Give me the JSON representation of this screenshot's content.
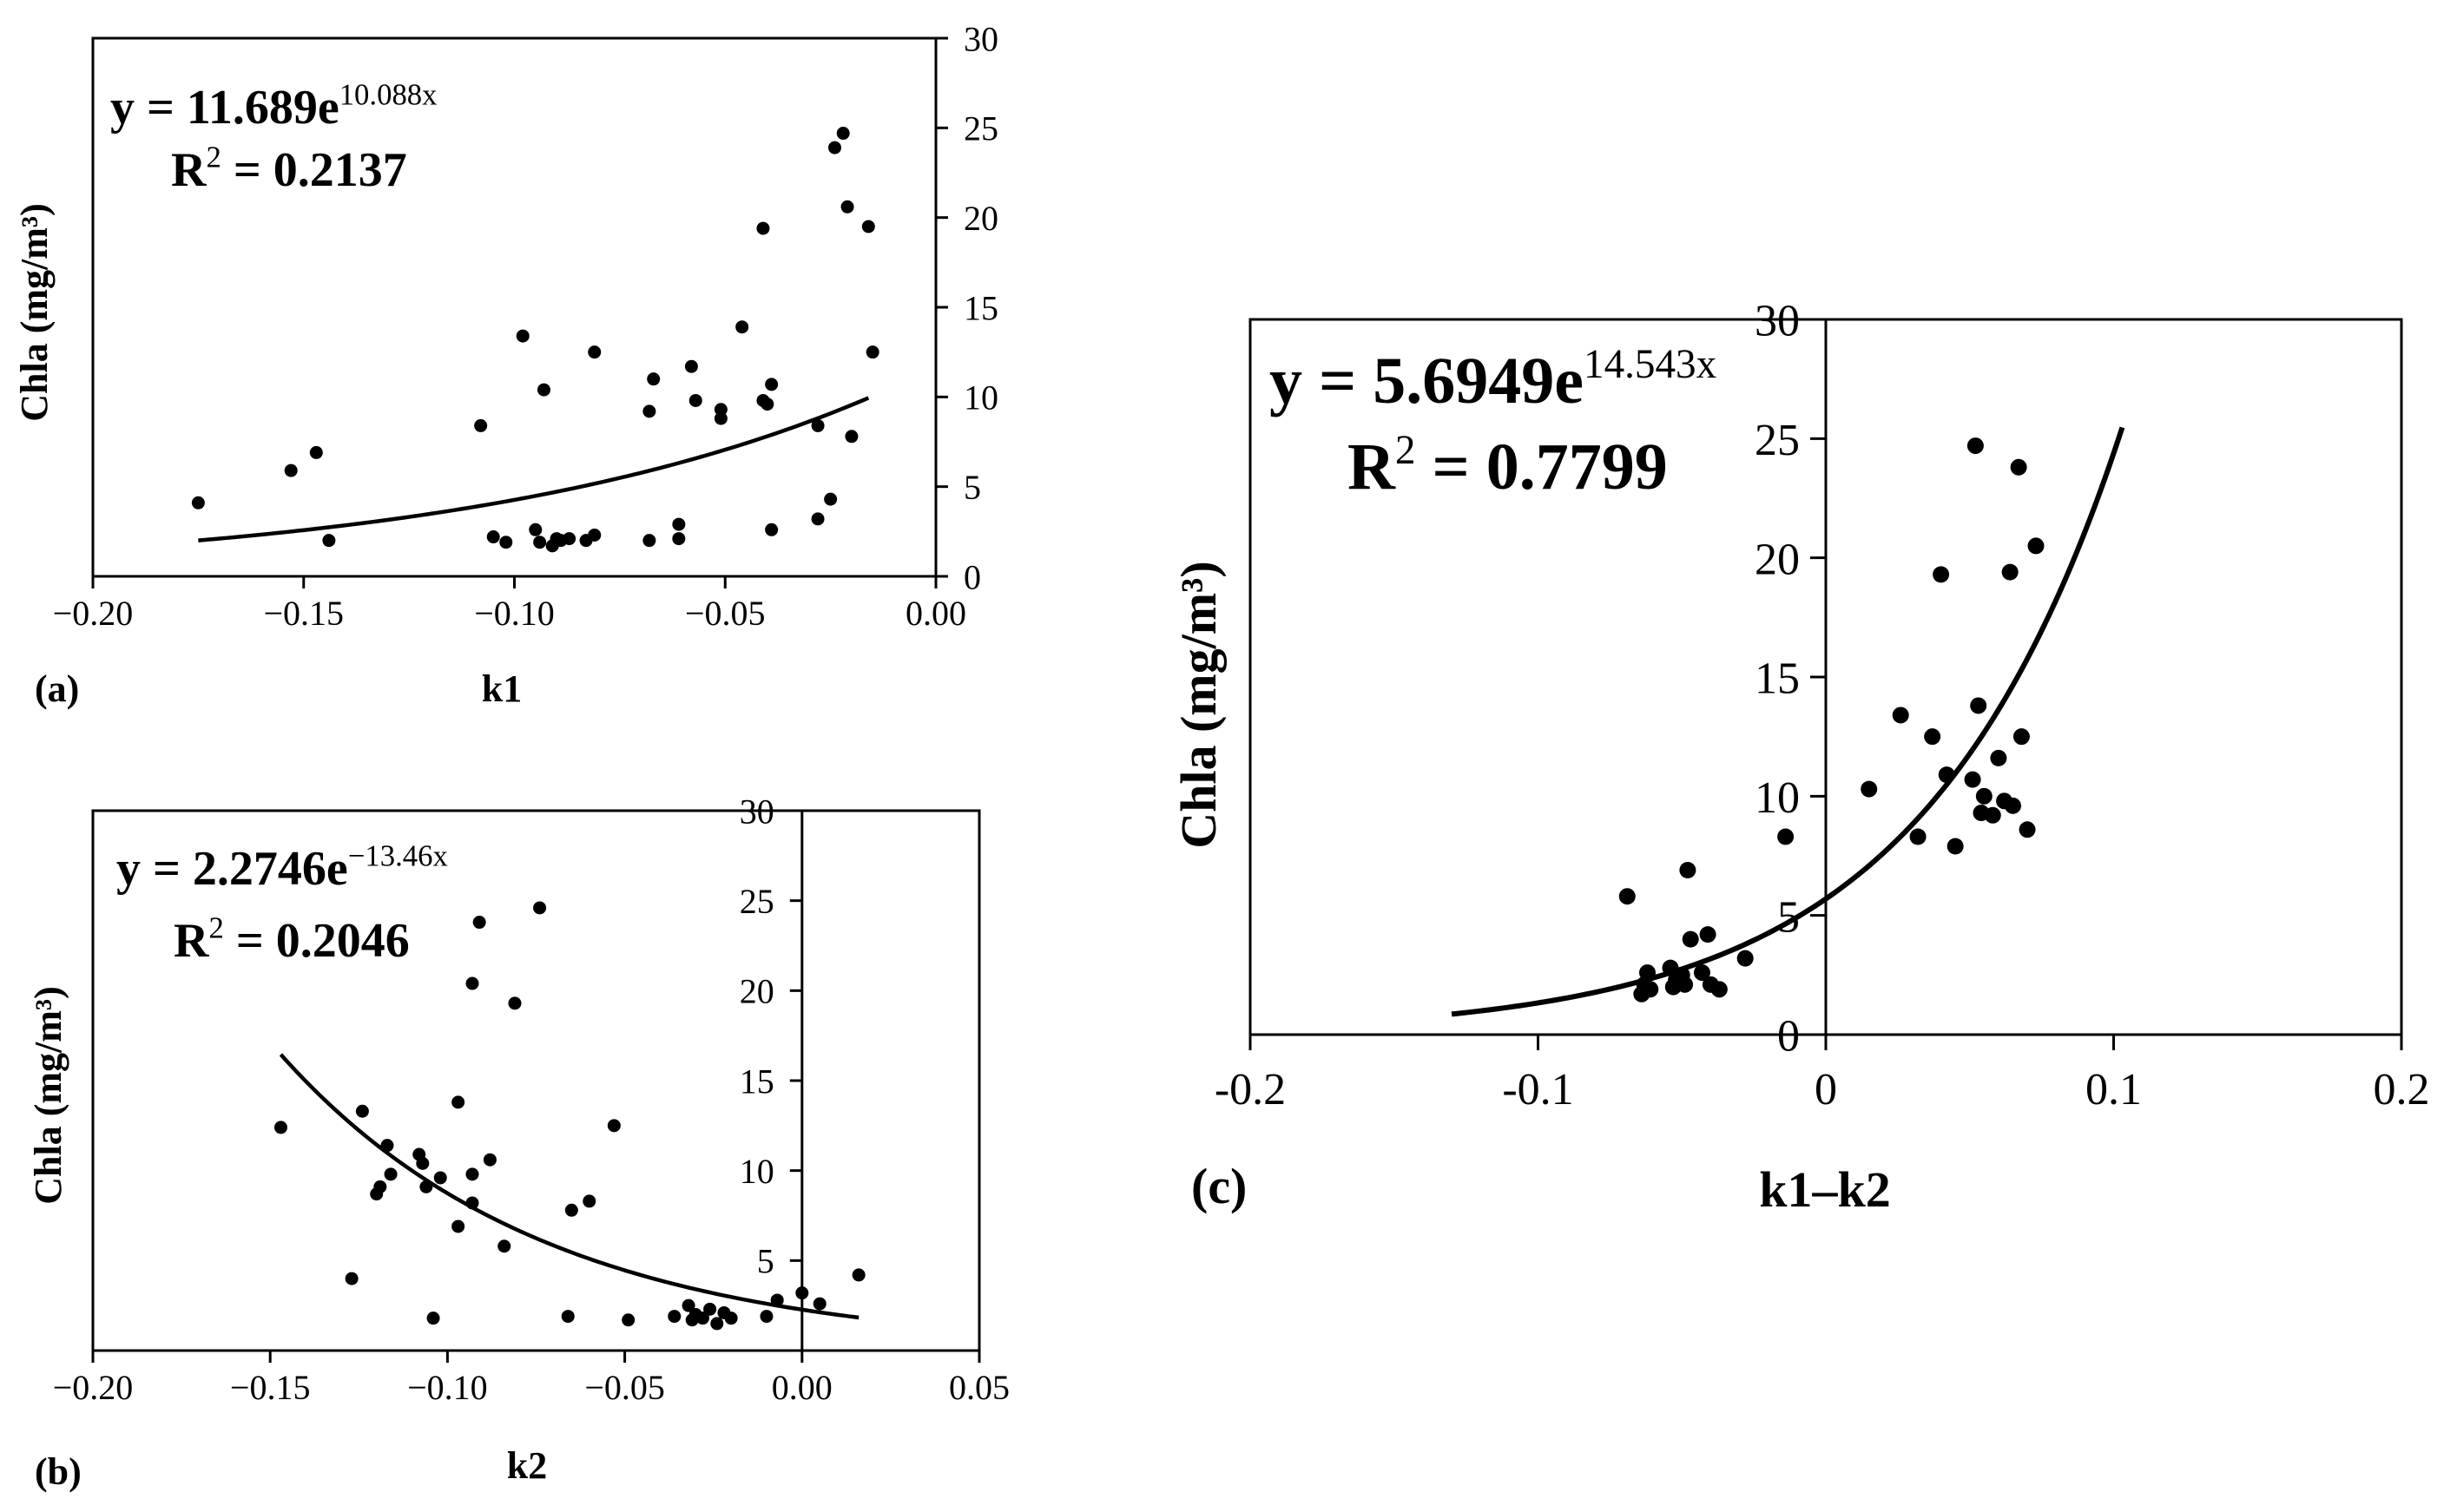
{
  "chart_data": [
    {
      "type": "scatter",
      "panel_label": "(a)",
      "xlabel": "k1",
      "ylabel": "Chla (mg/m³)",
      "xlim": [
        -0.2,
        0.0
      ],
      "ylim": [
        0,
        30
      ],
      "xticks": [
        -0.2,
        -0.15,
        -0.1,
        -0.05,
        0.0
      ],
      "xtick_labels": [
        "−0.20",
        "−0.15",
        "−0.10",
        "−0.05",
        "0.00"
      ],
      "yticks": [
        0,
        5,
        10,
        15,
        20,
        25,
        30
      ],
      "ytick_labels": [
        "0",
        "5",
        "10",
        "15",
        "20",
        "25",
        "30"
      ],
      "y_axis_side": "right",
      "grid": false,
      "equation": {
        "prefix": "y = 11.689e",
        "exponent": "10.088x"
      },
      "r2": {
        "label": "R",
        "sup": "2",
        "value": " = 0.2137"
      },
      "fit": {
        "model": "exponential",
        "a": 11.689,
        "b": 10.088,
        "x_from": -0.175,
        "x_to": -0.016
      },
      "points": [
        [
          -0.175,
          4.1
        ],
        [
          -0.153,
          5.9
        ],
        [
          -0.147,
          6.9
        ],
        [
          -0.144,
          2.0
        ],
        [
          -0.108,
          8.4
        ],
        [
          -0.105,
          2.2
        ],
        [
          -0.102,
          1.9
        ],
        [
          -0.098,
          13.4
        ],
        [
          -0.095,
          2.6
        ],
        [
          -0.094,
          1.9
        ],
        [
          -0.093,
          10.4
        ],
        [
          -0.091,
          1.7
        ],
        [
          -0.09,
          2.1
        ],
        [
          -0.089,
          2.0
        ],
        [
          -0.087,
          2.1
        ],
        [
          -0.083,
          2.0
        ],
        [
          -0.081,
          12.5
        ],
        [
          -0.081,
          2.3
        ],
        [
          -0.068,
          2.0
        ],
        [
          -0.067,
          11.0
        ],
        [
          -0.068,
          9.2
        ],
        [
          -0.061,
          2.1
        ],
        [
          -0.061,
          2.9
        ],
        [
          -0.058,
          11.7
        ],
        [
          -0.057,
          9.8
        ],
        [
          -0.051,
          9.3
        ],
        [
          -0.051,
          8.8
        ],
        [
          -0.046,
          13.9
        ],
        [
          -0.041,
          19.4
        ],
        [
          -0.041,
          9.8
        ],
        [
          -0.04,
          9.6
        ],
        [
          -0.039,
          2.6
        ],
        [
          -0.039,
          10.7
        ],
        [
          -0.028,
          8.4
        ],
        [
          -0.028,
          3.2
        ],
        [
          -0.025,
          4.3
        ],
        [
          -0.024,
          23.9
        ],
        [
          -0.022,
          24.7
        ],
        [
          -0.021,
          20.6
        ],
        [
          -0.02,
          7.8
        ],
        [
          -0.016,
          19.5
        ],
        [
          -0.015,
          12.5
        ]
      ]
    },
    {
      "type": "scatter",
      "panel_label": "(b)",
      "xlabel": "k2",
      "ylabel": "Chla (mg/m³)",
      "xlim": [
        -0.2,
        0.05
      ],
      "ylim": [
        0,
        30
      ],
      "xticks": [
        -0.2,
        -0.15,
        -0.1,
        -0.05,
        0.0,
        0.05
      ],
      "xtick_labels": [
        "−0.20",
        "−0.15",
        "−0.10",
        "−0.05",
        "0.00",
        "0.05"
      ],
      "yticks": [
        5,
        10,
        15,
        20,
        25,
        30
      ],
      "ytick_labels": [
        "5",
        "10",
        "15",
        "20",
        "25",
        "30"
      ],
      "y_axis_side": "zero",
      "grid": false,
      "equation": {
        "prefix": "y = 2.2746e",
        "exponent": "−13.46x"
      },
      "r2": {
        "label": "R",
        "sup": "2",
        "value": " = 0.2046"
      },
      "fit": {
        "model": "exponential",
        "a": 2.2746,
        "b": -13.46,
        "x_from": -0.147,
        "x_to": 0.016
      },
      "points": [
        [
          -0.147,
          12.4
        ],
        [
          -0.127,
          4.0
        ],
        [
          -0.124,
          13.3
        ],
        [
          -0.12,
          8.7
        ],
        [
          -0.119,
          9.1
        ],
        [
          -0.117,
          11.4
        ],
        [
          -0.116,
          9.8
        ],
        [
          -0.108,
          10.9
        ],
        [
          -0.107,
          10.4
        ],
        [
          -0.106,
          9.1
        ],
        [
          -0.104,
          1.8
        ],
        [
          -0.102,
          9.6
        ],
        [
          -0.097,
          13.8
        ],
        [
          -0.097,
          6.9
        ],
        [
          -0.093,
          20.4
        ],
        [
          -0.093,
          8.2
        ],
        [
          -0.093,
          9.8
        ],
        [
          -0.091,
          23.8
        ],
        [
          -0.088,
          10.6
        ],
        [
          -0.084,
          5.8
        ],
        [
          -0.081,
          19.3
        ],
        [
          -0.074,
          24.6
        ],
        [
          -0.066,
          1.9
        ],
        [
          -0.065,
          7.8
        ],
        [
          -0.06,
          8.3
        ],
        [
          -0.053,
          12.5
        ],
        [
          -0.049,
          1.7
        ],
        [
          -0.036,
          1.9
        ],
        [
          -0.032,
          2.5
        ],
        [
          -0.031,
          1.7
        ],
        [
          -0.03,
          2.0
        ],
        [
          -0.028,
          1.8
        ],
        [
          -0.026,
          2.3
        ],
        [
          -0.024,
          1.5
        ],
        [
          -0.022,
          2.1
        ],
        [
          -0.02,
          1.8
        ],
        [
          -0.01,
          1.9
        ],
        [
          -0.007,
          2.8
        ],
        [
          0.0,
          3.2
        ],
        [
          0.005,
          2.6
        ],
        [
          0.016,
          4.2
        ]
      ]
    },
    {
      "type": "scatter",
      "panel_label": "(c)",
      "xlabel": "k1–k2",
      "ylabel": "Chla (mg/m³)",
      "xlim": [
        -0.2,
        0.2
      ],
      "ylim": [
        0,
        30
      ],
      "xticks": [
        -0.2,
        -0.1,
        0.0,
        0.1,
        0.2
      ],
      "xtick_labels": [
        "-0.2",
        "-0.1",
        "0",
        "0.1",
        "0.2"
      ],
      "yticks": [
        0,
        5,
        10,
        15,
        20,
        25,
        30
      ],
      "ytick_labels": [
        "0",
        "5",
        "10",
        "15",
        "20",
        "25",
        "30"
      ],
      "y_axis_side": "zero",
      "grid": false,
      "equation": {
        "prefix": "y = 5.6949e",
        "exponent": "14.543x"
      },
      "r2": {
        "label": "R",
        "sup": "2",
        "value": " = 0.7799"
      },
      "fit": {
        "model": "exponential",
        "a": 5.6949,
        "b": 14.543,
        "x_from": -0.13,
        "x_to": 0.103
      },
      "points": [
        [
          -0.069,
          5.8
        ],
        [
          -0.064,
          1.7
        ],
        [
          -0.063,
          2.1
        ],
        [
          -0.062,
          2.6
        ],
        [
          -0.061,
          1.9
        ],
        [
          -0.054,
          2.8
        ],
        [
          -0.053,
          2.0
        ],
        [
          -0.052,
          2.3
        ],
        [
          -0.05,
          2.5
        ],
        [
          -0.049,
          2.1
        ],
        [
          -0.048,
          6.9
        ],
        [
          -0.047,
          4.0
        ],
        [
          -0.043,
          2.6
        ],
        [
          -0.041,
          4.2
        ],
        [
          -0.04,
          2.1
        ],
        [
          -0.037,
          1.9
        ],
        [
          -0.028,
          3.2
        ],
        [
          -0.014,
          8.3
        ],
        [
          0.015,
          10.3
        ],
        [
          0.026,
          13.4
        ],
        [
          0.032,
          8.3
        ],
        [
          0.037,
          12.5
        ],
        [
          0.04,
          19.3
        ],
        [
          0.042,
          10.9
        ],
        [
          0.045,
          7.9
        ],
        [
          0.051,
          10.7
        ],
        [
          0.052,
          24.7
        ],
        [
          0.053,
          13.8
        ],
        [
          0.054,
          9.3
        ],
        [
          0.055,
          10.0
        ],
        [
          0.058,
          9.2
        ],
        [
          0.06,
          11.6
        ],
        [
          0.062,
          9.8
        ],
        [
          0.064,
          19.4
        ],
        [
          0.065,
          9.6
        ],
        [
          0.067,
          23.8
        ],
        [
          0.068,
          12.5
        ],
        [
          0.07,
          8.6
        ],
        [
          0.073,
          20.5
        ]
      ]
    }
  ]
}
